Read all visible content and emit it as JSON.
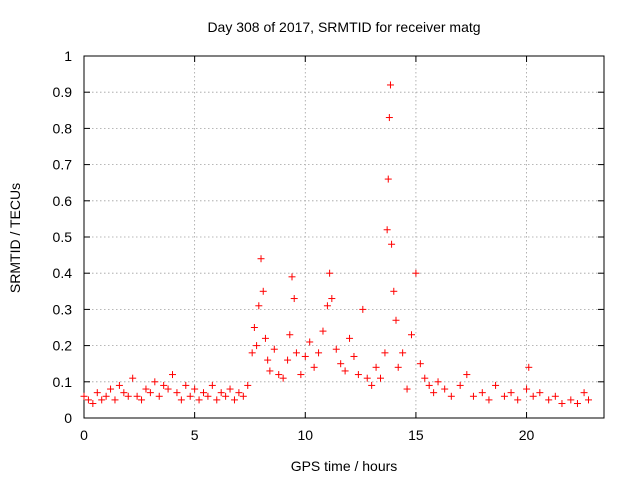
{
  "chart_data": {
    "type": "scatter",
    "title": "Day 308 of 2017, SRMTID for receiver matg",
    "xlabel": "GPS time / hours",
    "ylabel": "SRMTID / TECUs",
    "xlim": [
      0,
      23.5
    ],
    "ylim": [
      0,
      1
    ],
    "xticks": [
      0,
      5,
      10,
      15,
      20
    ],
    "yticks": [
      0,
      0.1,
      0.2,
      0.3,
      0.4,
      0.5,
      0.6,
      0.7,
      0.8,
      0.9,
      1
    ],
    "ytick_labels": [
      "0",
      "0.1",
      "0.2",
      "0.3",
      "0.4",
      "0.5",
      "0.6",
      "0.7",
      "0.8",
      "0.9",
      "1"
    ],
    "grid": true,
    "marker": "+",
    "color": "#ff0000",
    "series": [
      {
        "name": "SRMTID",
        "x": [
          0.0,
          0.2,
          0.4,
          0.6,
          0.8,
          1.0,
          1.2,
          1.4,
          1.6,
          1.8,
          2.0,
          2.2,
          2.4,
          2.6,
          2.8,
          3.0,
          3.2,
          3.4,
          3.6,
          3.8,
          4.0,
          4.2,
          4.4,
          4.6,
          4.8,
          5.0,
          5.2,
          5.4,
          5.6,
          5.8,
          6.0,
          6.2,
          6.4,
          6.6,
          6.8,
          7.0,
          7.2,
          7.4,
          7.6,
          7.7,
          7.8,
          7.9,
          8.0,
          8.1,
          8.2,
          8.3,
          8.4,
          8.6,
          8.8,
          9.0,
          9.2,
          9.3,
          9.4,
          9.5,
          9.6,
          9.8,
          10.0,
          10.2,
          10.4,
          10.6,
          10.8,
          11.0,
          11.1,
          11.2,
          11.4,
          11.6,
          11.8,
          12.0,
          12.2,
          12.4,
          12.6,
          12.8,
          13.0,
          13.2,
          13.4,
          13.6,
          13.7,
          13.75,
          13.8,
          13.85,
          13.9,
          14.0,
          14.1,
          14.2,
          14.4,
          14.6,
          14.8,
          15.0,
          15.2,
          15.4,
          15.6,
          15.8,
          16.0,
          16.3,
          16.6,
          17.0,
          17.3,
          17.6,
          18.0,
          18.3,
          18.6,
          19.0,
          19.3,
          19.6,
          20.0,
          20.1,
          20.3,
          20.6,
          21.0,
          21.3,
          21.6,
          22.0,
          22.3,
          22.6,
          22.8
        ],
        "y": [
          0.06,
          0.05,
          0.04,
          0.07,
          0.05,
          0.06,
          0.08,
          0.05,
          0.09,
          0.07,
          0.06,
          0.11,
          0.06,
          0.05,
          0.08,
          0.07,
          0.1,
          0.06,
          0.09,
          0.08,
          0.12,
          0.07,
          0.05,
          0.09,
          0.06,
          0.08,
          0.05,
          0.07,
          0.06,
          0.09,
          0.05,
          0.07,
          0.06,
          0.08,
          0.05,
          0.07,
          0.06,
          0.09,
          0.18,
          0.25,
          0.2,
          0.31,
          0.44,
          0.35,
          0.22,
          0.16,
          0.13,
          0.19,
          0.12,
          0.11,
          0.16,
          0.23,
          0.39,
          0.33,
          0.18,
          0.12,
          0.17,
          0.21,
          0.14,
          0.18,
          0.24,
          0.31,
          0.4,
          0.33,
          0.19,
          0.15,
          0.13,
          0.22,
          0.17,
          0.12,
          0.3,
          0.11,
          0.09,
          0.14,
          0.11,
          0.18,
          0.52,
          0.66,
          0.83,
          0.92,
          0.48,
          0.35,
          0.27,
          0.14,
          0.18,
          0.08,
          0.23,
          0.4,
          0.15,
          0.11,
          0.09,
          0.07,
          0.1,
          0.08,
          0.06,
          0.09,
          0.12,
          0.06,
          0.07,
          0.05,
          0.09,
          0.06,
          0.07,
          0.05,
          0.08,
          0.14,
          0.06,
          0.07,
          0.05,
          0.06,
          0.04,
          0.05,
          0.04,
          0.07,
          0.05
        ]
      }
    ]
  }
}
